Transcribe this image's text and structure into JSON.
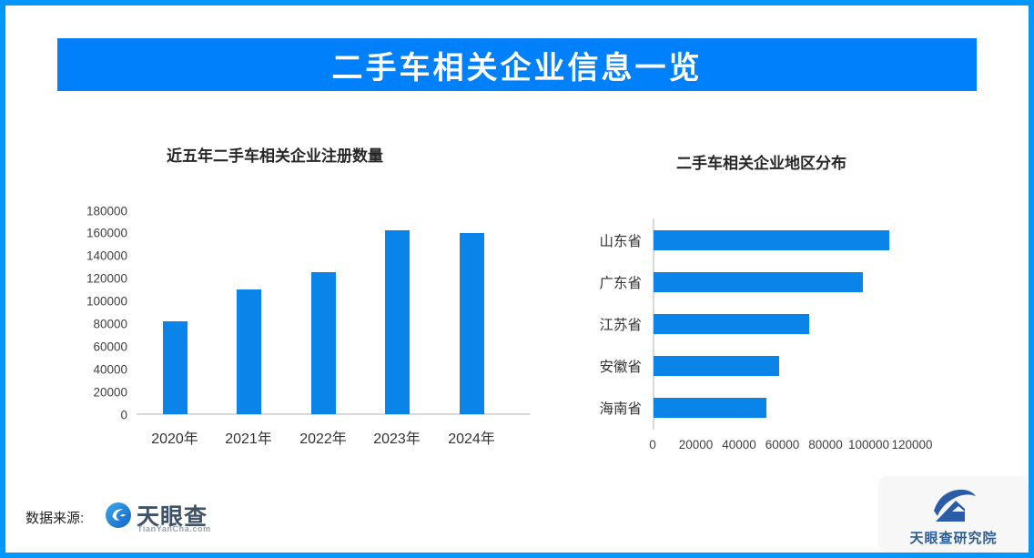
{
  "frame": {
    "border_color": "#0098FF"
  },
  "banner": {
    "title": "二手车相关企业信息一览",
    "bg_color": "#0080FB",
    "text_color": "#FFFFFF"
  },
  "chart_data": [
    {
      "type": "bar",
      "orientation": "vertical",
      "title": "近五年二手车相关企业注册数量",
      "categories": [
        "2020年",
        "2021年",
        "2022年",
        "2023年",
        "2024年"
      ],
      "values": [
        82000,
        110000,
        125000,
        162000,
        160000
      ],
      "ylim": [
        0,
        180000
      ],
      "ytick_step": 20000,
      "grid": false,
      "legend": false,
      "bar_color": "#0A84E8"
    },
    {
      "type": "bar",
      "orientation": "horizontal",
      "title": "二手车相关企业地区分布",
      "categories": [
        "山东省",
        "广东省",
        "江苏省",
        "安徽省",
        "海南省"
      ],
      "values": [
        109000,
        97000,
        72000,
        58000,
        52000
      ],
      "xlim": [
        0,
        120000
      ],
      "xticks": [
        0,
        20000,
        40000,
        60000,
        80000,
        100000,
        120000
      ],
      "grid": false,
      "legend": false,
      "bar_color": "#0A84E8"
    }
  ],
  "footer": {
    "source_label": "数据来源:",
    "tianyancha": {
      "name": "天眼查",
      "domain": "TianYanCha.com"
    },
    "institute": {
      "name": "天眼查研究院"
    }
  }
}
